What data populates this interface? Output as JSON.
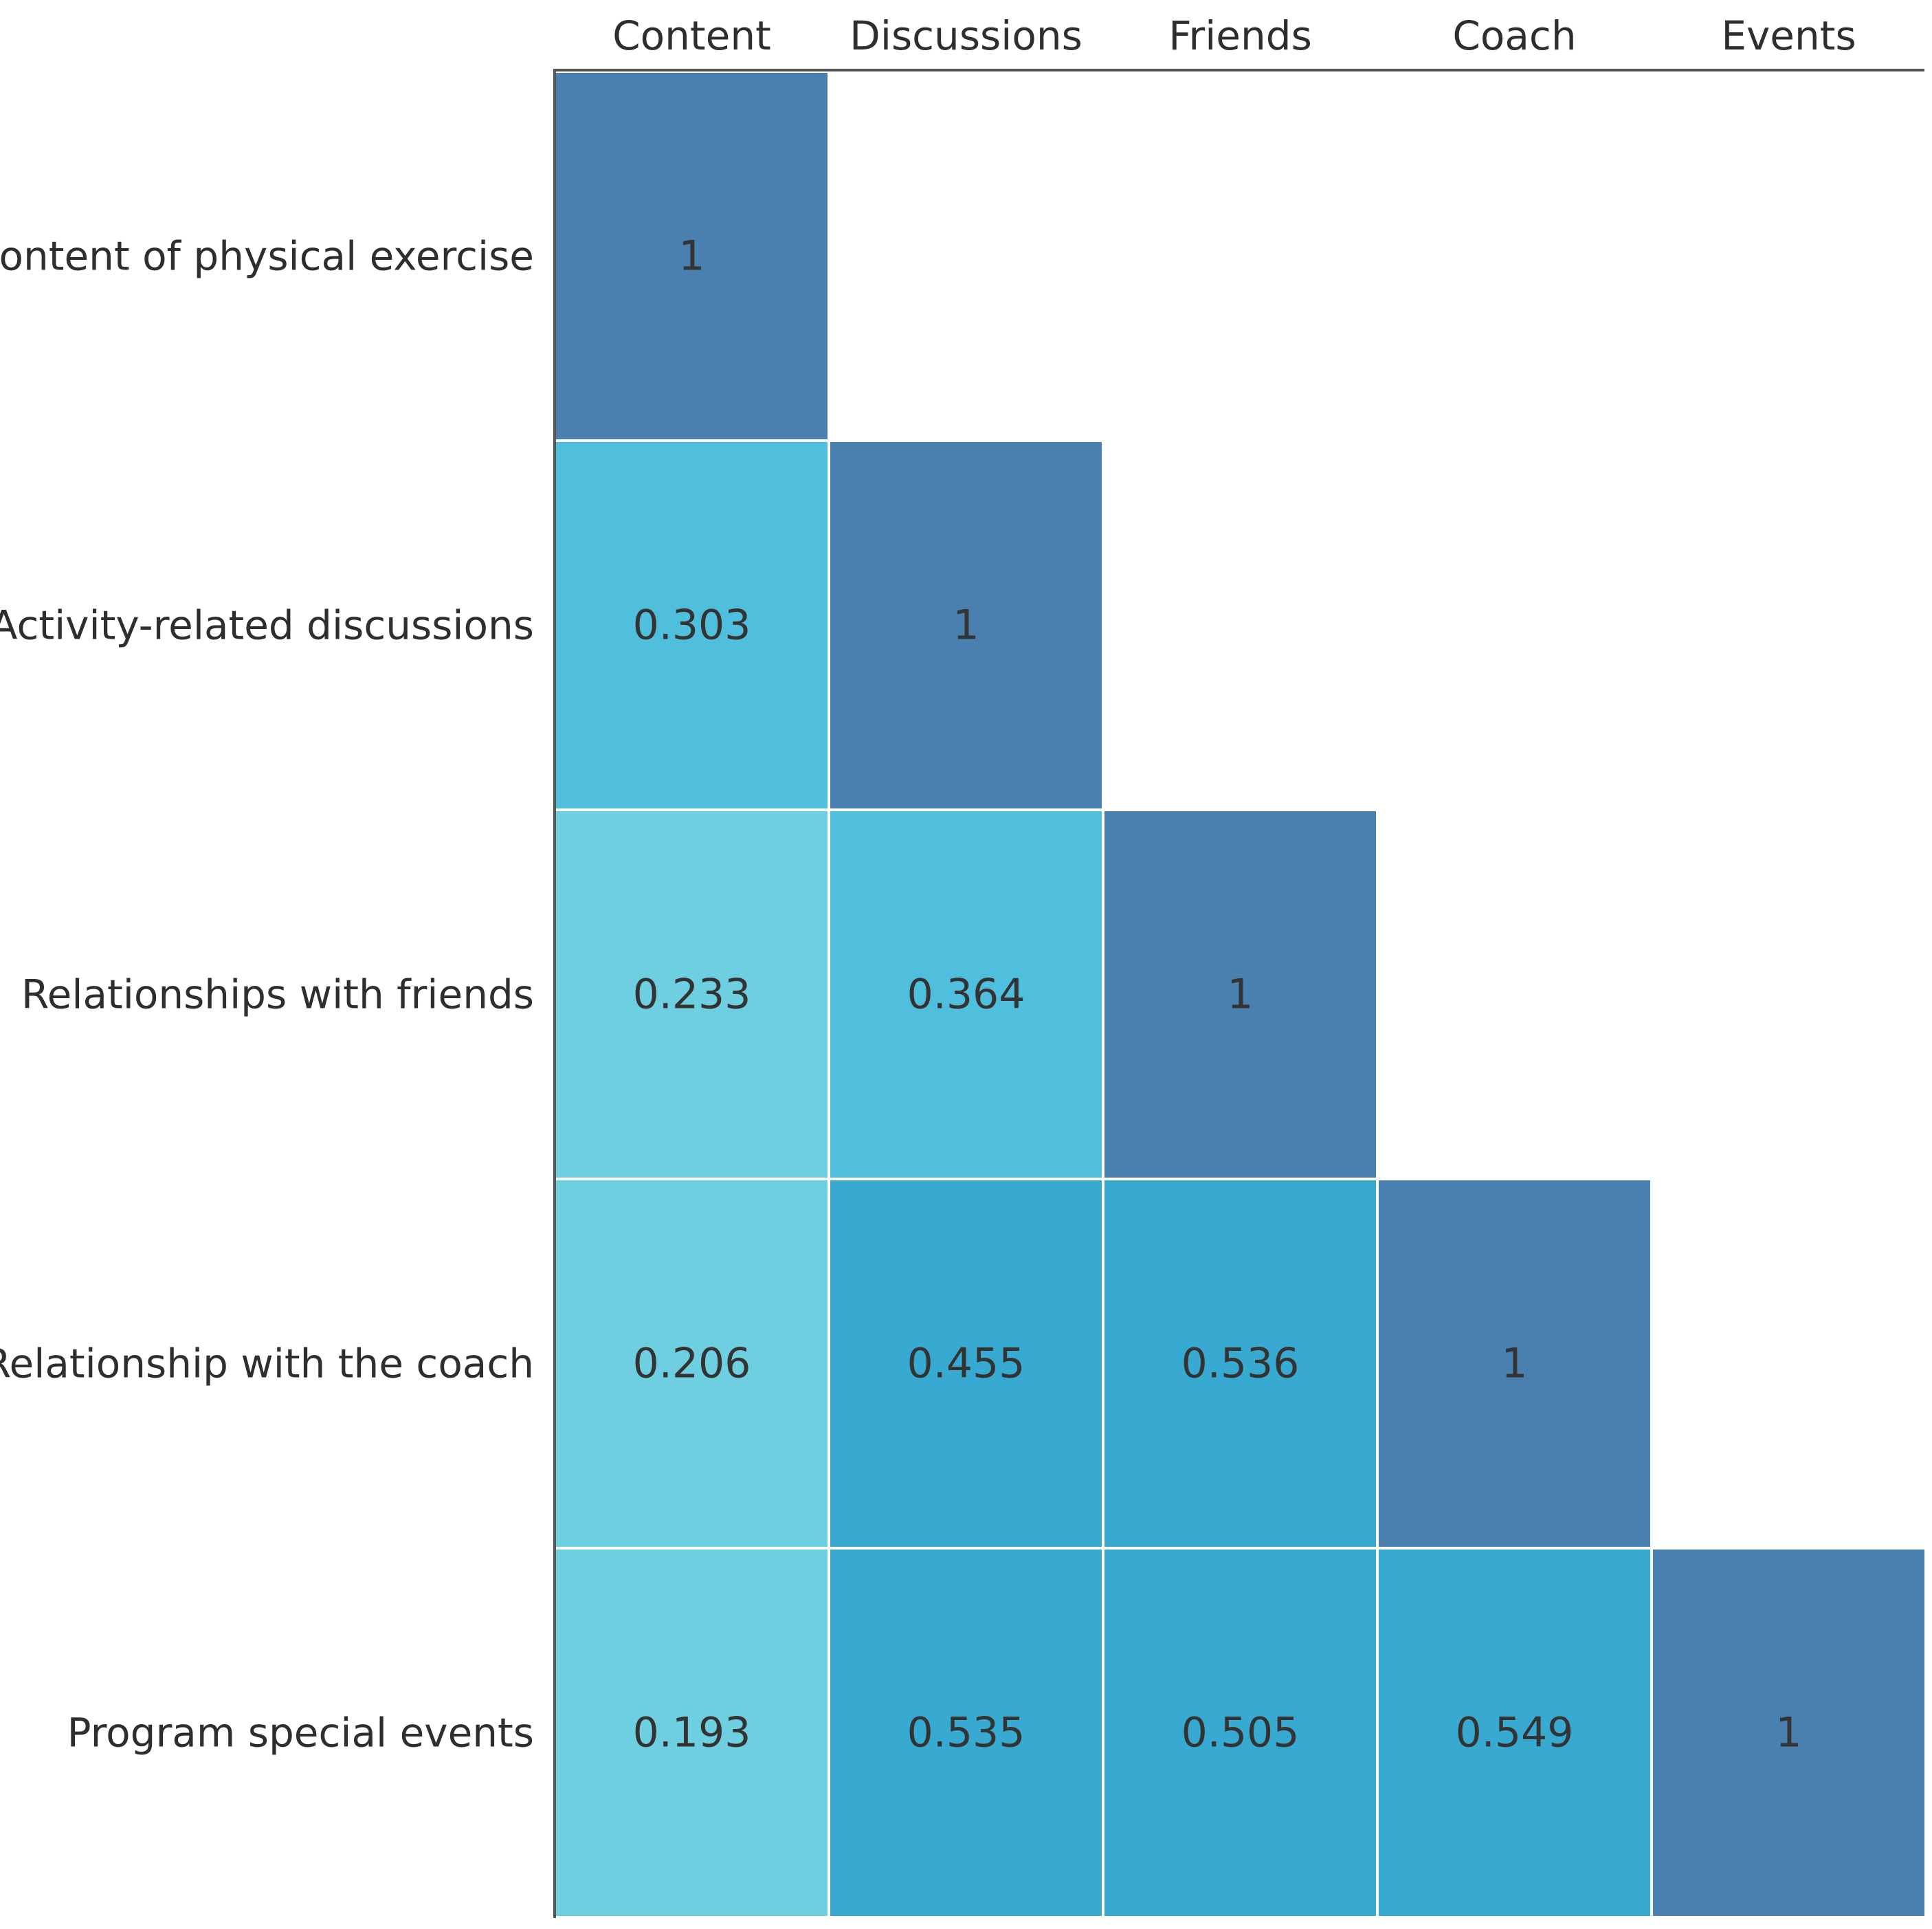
{
  "chart_data": {
    "type": "heatmap",
    "title": "",
    "columns": [
      "Content",
      "Discussions",
      "Friends",
      "Coach",
      "Events"
    ],
    "rows": [
      "Content of physical exercise",
      "Activity-related discussions",
      "Relationships with friends",
      "Relationship with the coach",
      "Program special events"
    ],
    "matrix": [
      [
        "1",
        null,
        null,
        null,
        null
      ],
      [
        "0.303",
        "1",
        null,
        null,
        null
      ],
      [
        "0.233",
        "0.364",
        "1",
        null,
        null
      ],
      [
        "0.206",
        "0.455",
        "0.536",
        "1",
        null
      ],
      [
        "0.193",
        "0.535",
        "0.505",
        "0.549",
        "1"
      ]
    ],
    "color_scale": [
      {
        "max": 0.25,
        "color": "#6ecfe0"
      },
      {
        "max": 0.4,
        "color": "#50bedd"
      },
      {
        "max": 0.99,
        "color": "#38aad2"
      },
      {
        "max": 1.0,
        "color": "#4a80b0"
      }
    ],
    "grid": false,
    "legend": "none"
  }
}
